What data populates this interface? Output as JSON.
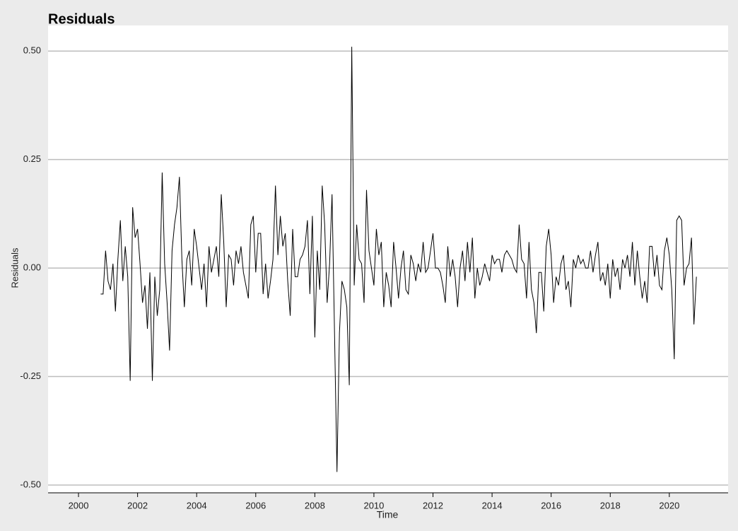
{
  "chart_data": {
    "type": "line",
    "title": "Residuals",
    "x_label": "Time",
    "y_label": "Residuals",
    "color": "#000000",
    "grid": true,
    "xlim": [
      1998.97,
      2021.99
    ],
    "ylim": [
      -0.518,
      0.559
    ],
    "xticks": [
      2000,
      2002,
      2004,
      2006,
      2008,
      2010,
      2012,
      2014,
      2016,
      2018,
      2020
    ],
    "yticks": [
      {
        "value": -0.5,
        "label": "-0.50"
      },
      -0.25,
      {
        "value": 0,
        "label": "0.00"
      },
      0.25,
      {
        "value": 0.5,
        "label": "0.50"
      }
    ],
    "x": [
      2000.75,
      2000.833,
      2000.917,
      2001,
      2001.083,
      2001.167,
      2001.25,
      2001.333,
      2001.417,
      2001.5,
      2001.583,
      2001.667,
      2001.75,
      2001.833,
      2001.917,
      2002,
      2002.083,
      2002.167,
      2002.25,
      2002.333,
      2002.417,
      2002.5,
      2002.583,
      2002.667,
      2002.75,
      2002.833,
      2002.917,
      2003,
      2003.083,
      2003.167,
      2003.25,
      2003.333,
      2003.417,
      2003.5,
      2003.583,
      2003.667,
      2003.75,
      2003.833,
      2003.917,
      2004,
      2004.083,
      2004.167,
      2004.25,
      2004.333,
      2004.417,
      2004.5,
      2004.583,
      2004.667,
      2004.75,
      2004.833,
      2004.917,
      2005,
      2005.083,
      2005.167,
      2005.25,
      2005.333,
      2005.417,
      2005.5,
      2005.583,
      2005.667,
      2005.75,
      2005.833,
      2005.917,
      2006,
      2006.083,
      2006.167,
      2006.25,
      2006.333,
      2006.417,
      2006.5,
      2006.583,
      2006.667,
      2006.75,
      2006.833,
      2006.917,
      2007,
      2007.083,
      2007.167,
      2007.25,
      2007.333,
      2007.417,
      2007.5,
      2007.583,
      2007.667,
      2007.75,
      2007.833,
      2007.917,
      2008,
      2008.083,
      2008.167,
      2008.25,
      2008.333,
      2008.417,
      2008.5,
      2008.583,
      2008.667,
      2008.75,
      2008.833,
      2008.917,
      2009,
      2009.083,
      2009.167,
      2009.25,
      2009.333,
      2009.417,
      2009.5,
      2009.583,
      2009.667,
      2009.75,
      2009.833,
      2009.917,
      2010,
      2010.083,
      2010.167,
      2010.25,
      2010.333,
      2010.417,
      2010.5,
      2010.583,
      2010.667,
      2010.75,
      2010.833,
      2010.917,
      2011,
      2011.083,
      2011.167,
      2011.25,
      2011.333,
      2011.417,
      2011.5,
      2011.583,
      2011.667,
      2011.75,
      2011.833,
      2011.917,
      2012,
      2012.083,
      2012.167,
      2012.25,
      2012.333,
      2012.417,
      2012.5,
      2012.583,
      2012.667,
      2012.75,
      2012.833,
      2012.917,
      2013,
      2013.083,
      2013.167,
      2013.25,
      2013.333,
      2013.417,
      2013.5,
      2013.583,
      2013.667,
      2013.75,
      2013.833,
      2013.917,
      2014,
      2014.083,
      2014.167,
      2014.25,
      2014.333,
      2014.417,
      2014.5,
      2014.583,
      2014.667,
      2014.75,
      2014.833,
      2014.917,
      2015,
      2015.083,
      2015.167,
      2015.25,
      2015.333,
      2015.417,
      2015.5,
      2015.583,
      2015.667,
      2015.75,
      2015.833,
      2015.917,
      2016,
      2016.083,
      2016.167,
      2016.25,
      2016.333,
      2016.417,
      2016.5,
      2016.583,
      2016.667,
      2016.75,
      2016.833,
      2016.917,
      2017,
      2017.083,
      2017.167,
      2017.25,
      2017.333,
      2017.417,
      2017.5,
      2017.583,
      2017.667,
      2017.75,
      2017.833,
      2017.917,
      2018,
      2018.083,
      2018.167,
      2018.25,
      2018.333,
      2018.417,
      2018.5,
      2018.583,
      2018.667,
      2018.75,
      2018.833,
      2018.917,
      2019,
      2019.083,
      2019.167,
      2019.25,
      2019.333,
      2019.417,
      2019.5,
      2019.583,
      2019.667,
      2019.75,
      2019.833,
      2019.917,
      2020,
      2020.083,
      2020.167,
      2020.25,
      2020.333,
      2020.417,
      2020.5,
      2020.583,
      2020.667,
      2020.75,
      2020.833,
      2020.917
    ],
    "values": [
      -0.06,
      -0.06,
      0.04,
      -0.03,
      -0.05,
      0.01,
      -0.1,
      0.02,
      0.11,
      -0.03,
      0.05,
      -0.02,
      -0.26,
      0.14,
      0.07,
      0.09,
      0.01,
      -0.08,
      -0.04,
      -0.14,
      -0.01,
      -0.26,
      -0.02,
      -0.11,
      -0.05,
      0.22,
      0.01,
      -0.08,
      -0.19,
      0.04,
      0.1,
      0.14,
      0.21,
      0.02,
      -0.09,
      0.02,
      0.04,
      -0.04,
      0.09,
      0.05,
      0.0,
      -0.05,
      0.01,
      -0.09,
      0.05,
      -0.01,
      0.02,
      0.05,
      -0.02,
      0.17,
      0.06,
      -0.09,
      0.03,
      0.02,
      -0.04,
      0.04,
      0.01,
      0.05,
      -0.01,
      -0.04,
      -0.07,
      0.1,
      0.12,
      -0.01,
      0.08,
      0.08,
      -0.06,
      0.01,
      -0.07,
      -0.03,
      0.02,
      0.19,
      0.03,
      0.12,
      0.05,
      0.08,
      -0.03,
      -0.11,
      0.09,
      -0.02,
      -0.02,
      0.02,
      0.03,
      0.05,
      0.11,
      -0.06,
      0.12,
      -0.16,
      0.04,
      -0.05,
      0.19,
      0.1,
      -0.08,
      0.01,
      0.17,
      -0.15,
      -0.47,
      -0.15,
      -0.03,
      -0.05,
      -0.09,
      -0.27,
      0.51,
      -0.04,
      0.1,
      0.02,
      0.01,
      -0.08,
      0.18,
      0.04,
      0.0,
      -0.04,
      0.09,
      0.03,
      0.06,
      -0.09,
      -0.01,
      -0.04,
      -0.09,
      0.06,
      0.0,
      -0.07,
      0.0,
      0.04,
      -0.05,
      -0.06,
      0.03,
      0.01,
      -0.03,
      0.01,
      -0.01,
      0.06,
      -0.01,
      0.0,
      0.04,
      0.08,
      0.0,
      0.0,
      -0.01,
      -0.04,
      -0.08,
      0.05,
      -0.02,
      0.02,
      -0.02,
      -0.09,
      0.0,
      0.04,
      -0.03,
      0.06,
      -0.01,
      0.07,
      -0.07,
      0.0,
      -0.04,
      -0.02,
      0.01,
      -0.01,
      -0.03,
      0.03,
      0.01,
      0.02,
      0.02,
      -0.01,
      0.03,
      0.04,
      0.03,
      0.02,
      0.0,
      -0.01,
      0.1,
      0.02,
      0.01,
      -0.07,
      0.06,
      -0.05,
      -0.08,
      -0.15,
      -0.01,
      -0.01,
      -0.1,
      0.05,
      0.09,
      0.03,
      -0.08,
      -0.02,
      -0.04,
      0.01,
      0.03,
      -0.05,
      -0.03,
      -0.09,
      0.02,
      0.0,
      0.03,
      0.01,
      0.02,
      0.0,
      0.0,
      0.04,
      -0.01,
      0.03,
      0.06,
      -0.03,
      -0.01,
      -0.04,
      0.01,
      -0.07,
      0.02,
      -0.02,
      0.0,
      -0.05,
      0.02,
      0.0,
      0.03,
      -0.02,
      0.06,
      -0.04,
      0.04,
      -0.02,
      -0.07,
      -0.03,
      -0.08,
      0.05,
      0.05,
      -0.02,
      0.03,
      -0.04,
      -0.05,
      0.04,
      0.07,
      0.03,
      -0.05,
      -0.21,
      0.11,
      0.12,
      0.11,
      -0.04,
      0.0,
      0.01,
      0.07,
      -0.13,
      -0.02
    ]
  }
}
